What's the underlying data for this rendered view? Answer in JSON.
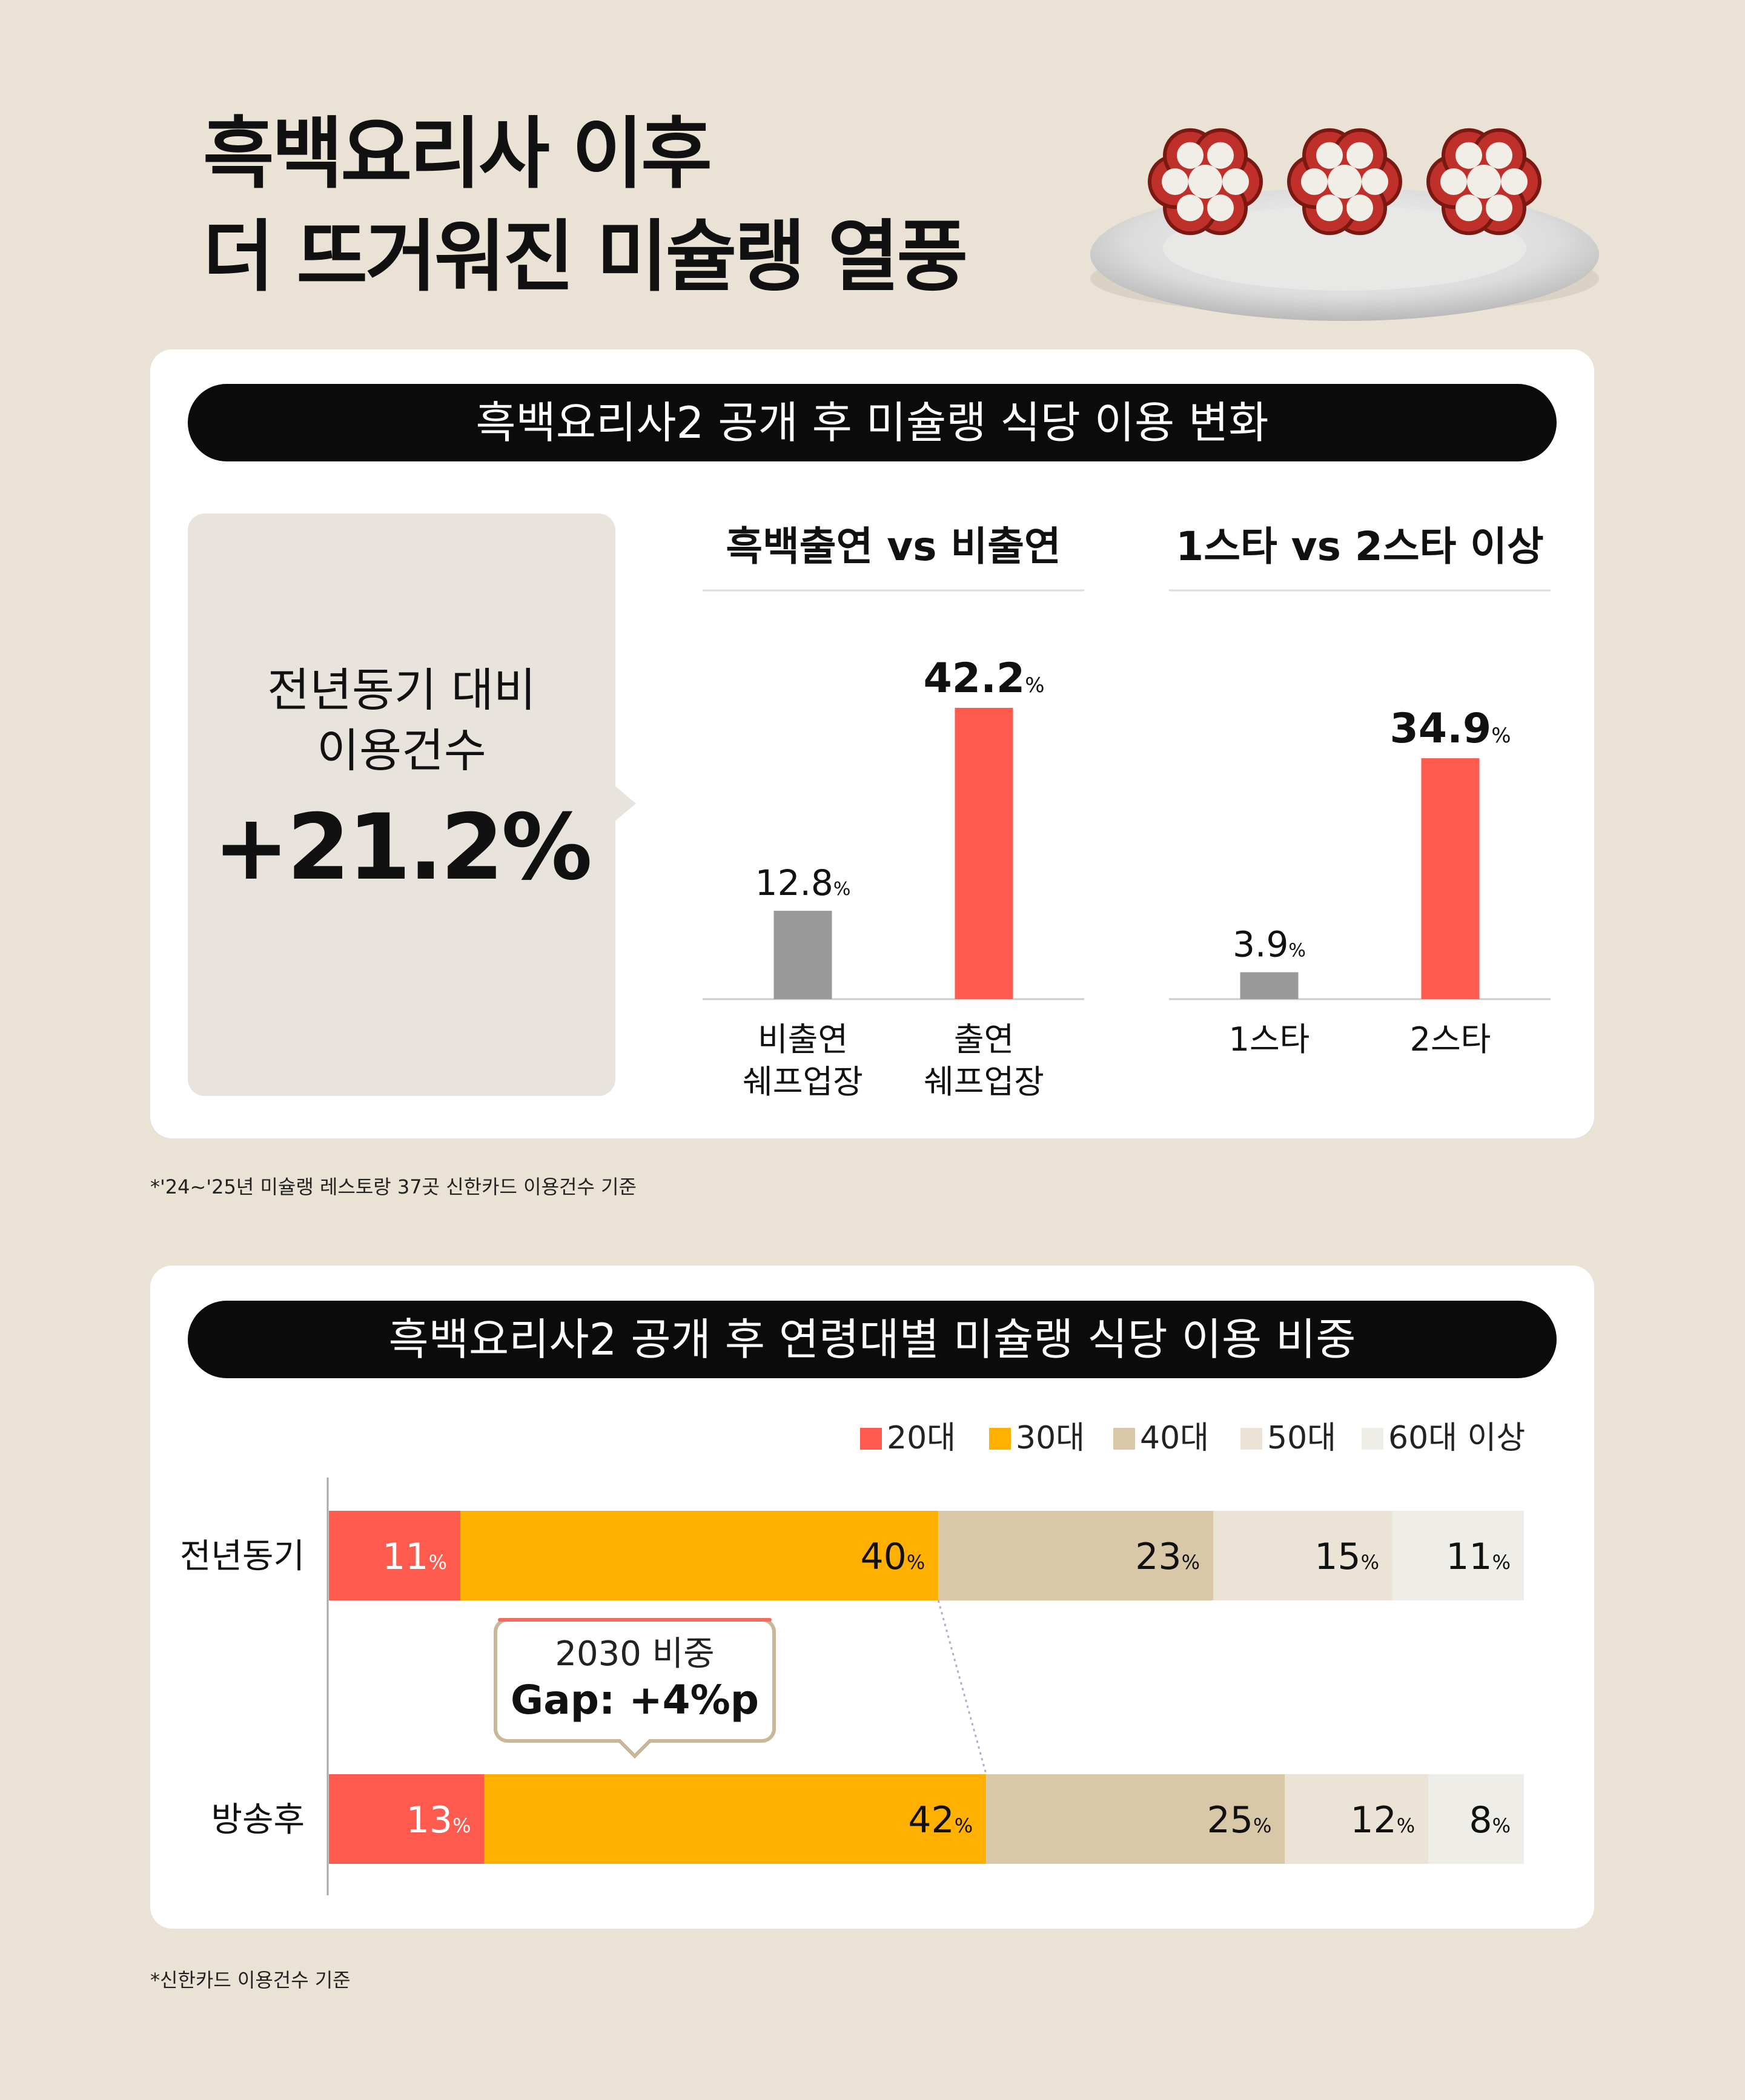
{
  "header": {
    "title_line1": "흑백요리사 이후",
    "title_line2": "더 뜨거워진 미슐랭 열풍"
  },
  "section1": {
    "pill_title": "흑백요리사2 공개 후 미슐랭 식당 이용 변화",
    "summary_label_line1": "전년동기 대비",
    "summary_label_line2": "이용건수",
    "summary_value": "+21.2%",
    "footnote": "*'24~'25년 미슐랭 레스토랑 37곳 신한카드 이용건수 기준"
  },
  "section2": {
    "pill_title": "흑백요리사2 공개 후 연령대별 미슐랭 식당 이용 비중",
    "footnote": "*신한카드 이용건수 기준",
    "callout_line1": "2030 비중",
    "callout_line2": "Gap: +4%p"
  },
  "colors": {
    "highlight": "#ff5a4e",
    "neutral_bar": "#999999",
    "age_20s": "#ff5a4e",
    "age_30s": "#ffb000",
    "age_40s": "#d8c8a8",
    "age_50s": "#ebe4d6",
    "age_60s_plus": "#efede8"
  },
  "chart_data": [
    {
      "type": "bar",
      "title": "흑백출연 vs 비출연",
      "categories": [
        "비출연 쉐프업장",
        "출연 쉐프업장"
      ],
      "categories_line1": [
        "비출연",
        "출연"
      ],
      "categories_line2": [
        "쉐프업장",
        "쉐프업장"
      ],
      "values": [
        12.8,
        42.2
      ],
      "value_labels": [
        "12.8",
        "42.2"
      ],
      "unit": "%",
      "ylim": [
        0,
        50
      ],
      "grid": false
    },
    {
      "type": "bar",
      "title": "1스타 vs 2스타 이상",
      "categories": [
        "1스타",
        "2스타"
      ],
      "values": [
        3.9,
        34.9
      ],
      "value_labels": [
        "3.9",
        "34.9"
      ],
      "unit": "%",
      "ylim": [
        0,
        50
      ],
      "grid": false
    },
    {
      "type": "bar",
      "stacked": true,
      "orientation": "horizontal",
      "categories": [
        "전년동기",
        "방송후"
      ],
      "unit": "%",
      "legend_position": "top-right",
      "series": [
        {
          "name": "20대",
          "values": [
            11,
            13
          ]
        },
        {
          "name": "30대",
          "values": [
            40,
            42
          ]
        },
        {
          "name": "40대",
          "values": [
            23,
            25
          ]
        },
        {
          "name": "50대",
          "values": [
            15,
            12
          ]
        },
        {
          "name": "60대 이상",
          "values": [
            11,
            8
          ]
        }
      ]
    }
  ]
}
